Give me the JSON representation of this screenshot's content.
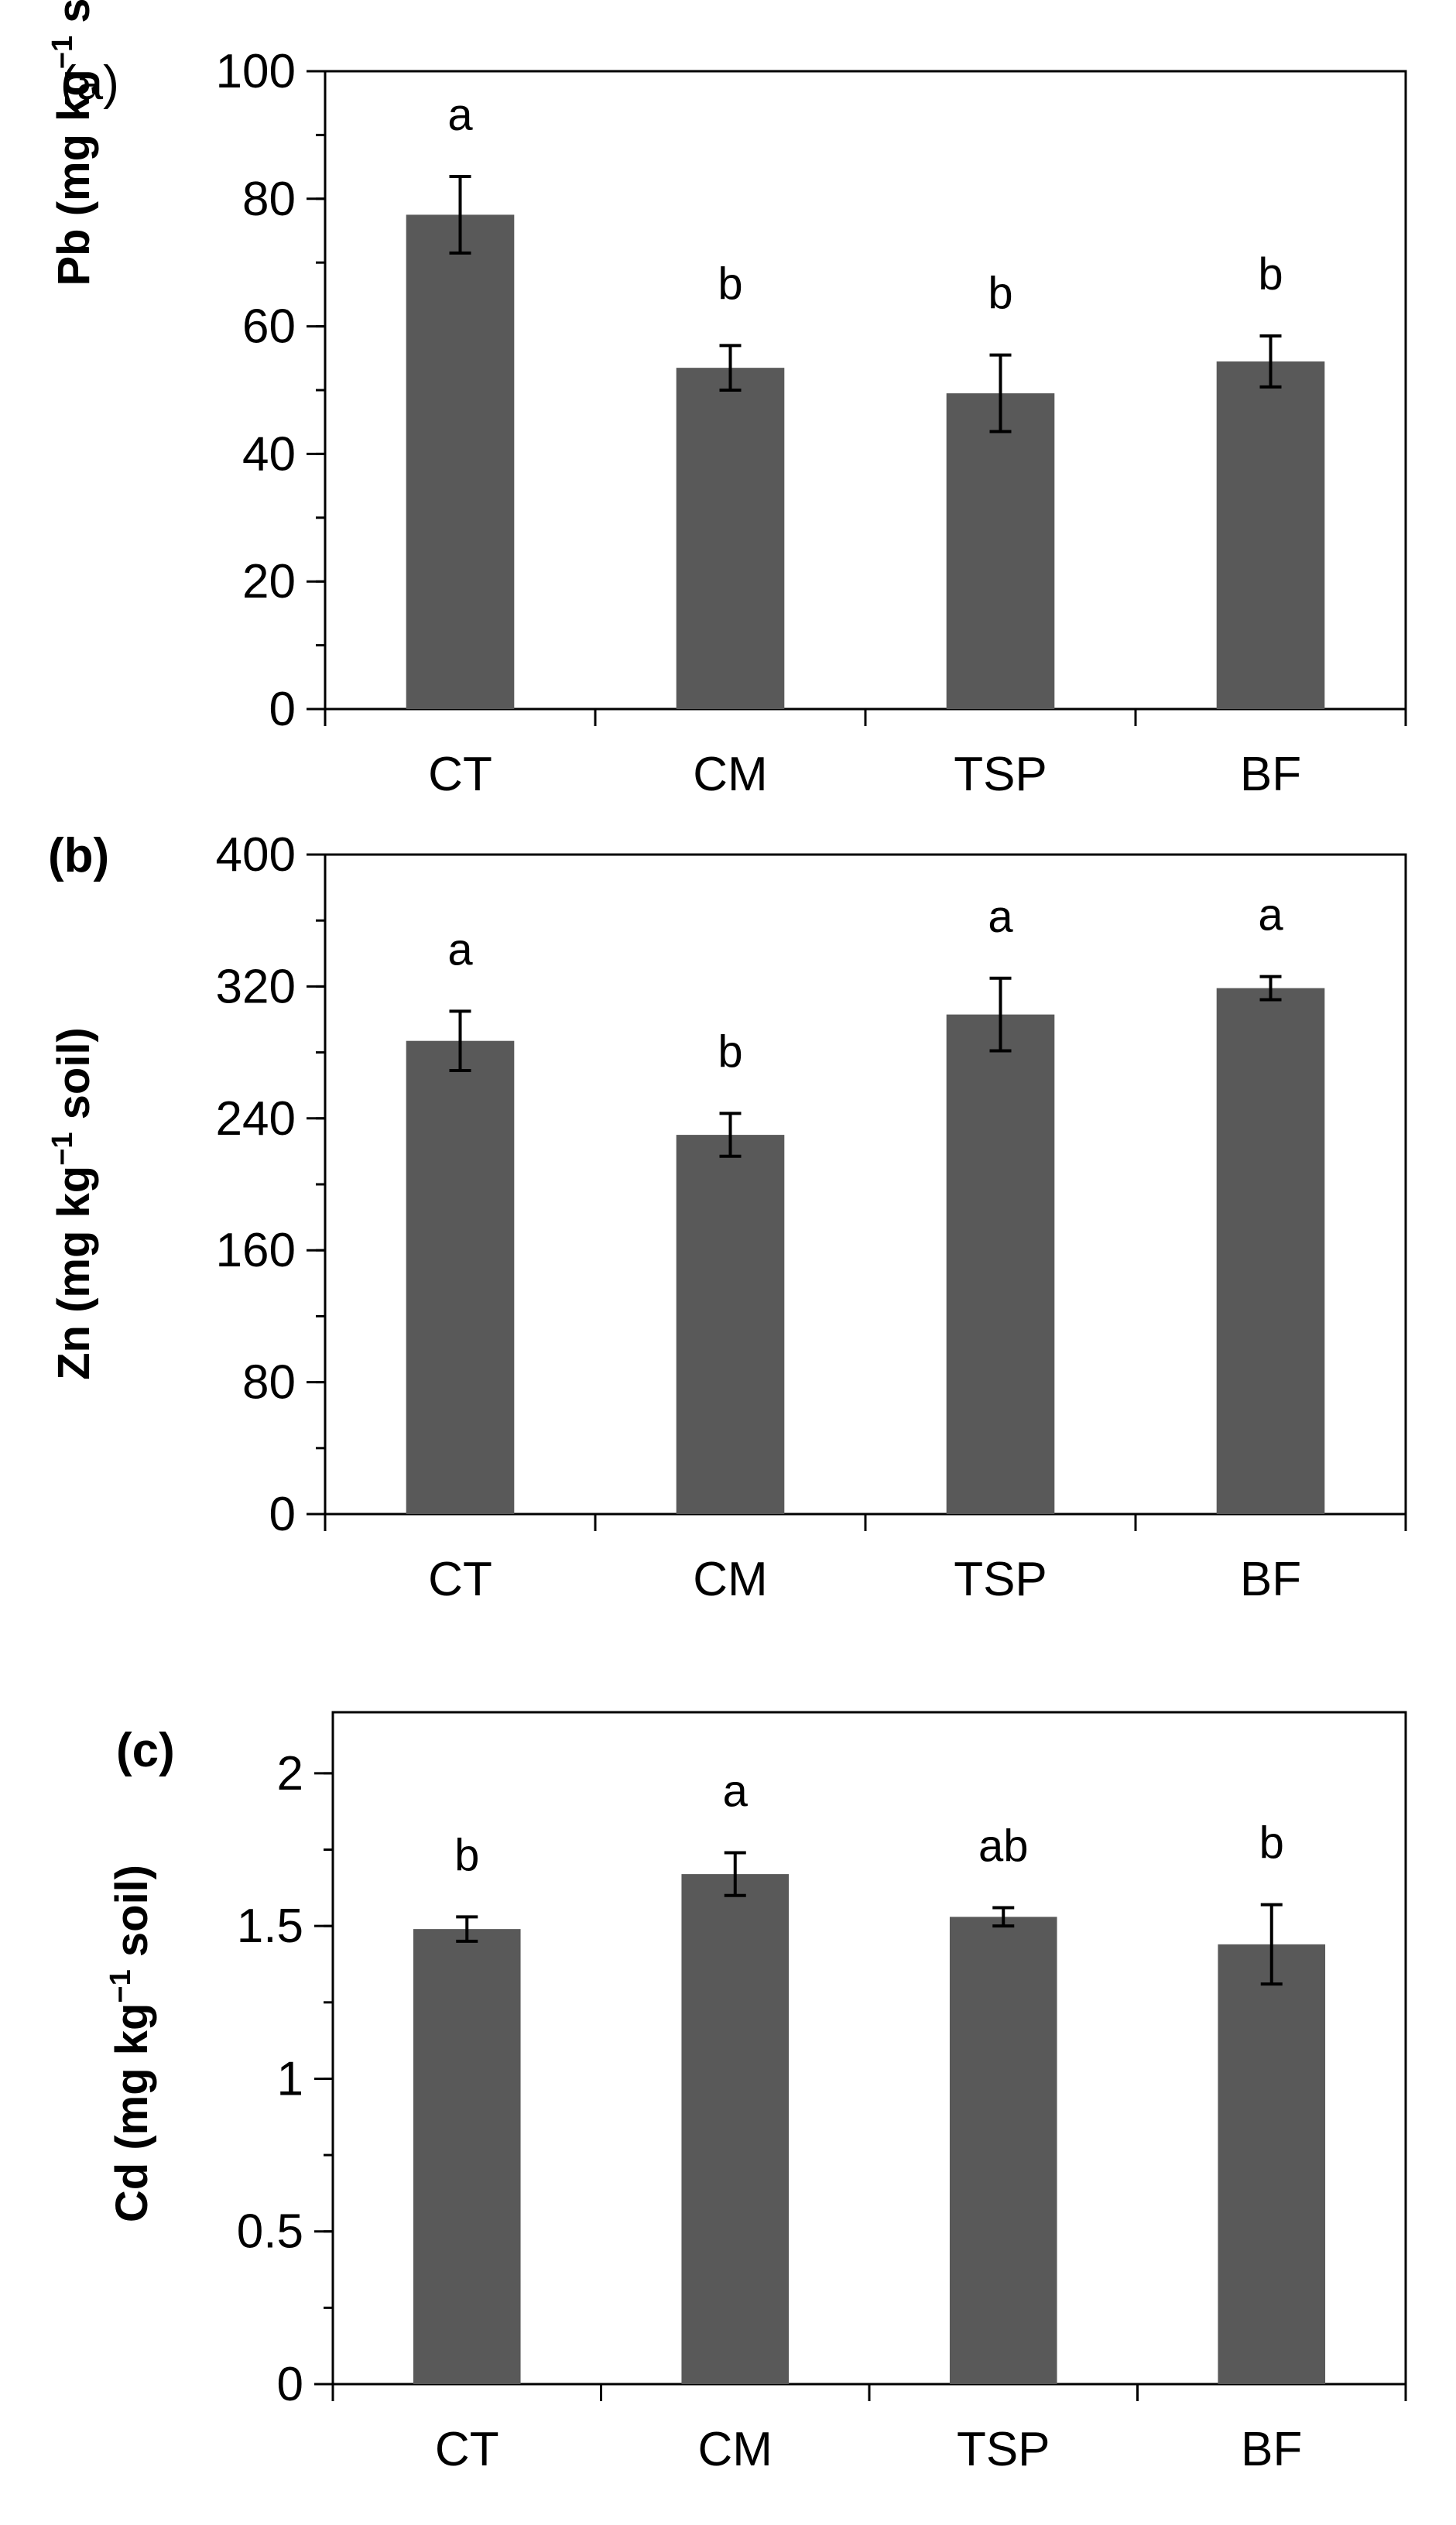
{
  "figure": {
    "bar_color": "#595959",
    "axis_color": "#000000"
  },
  "chart_data": [
    {
      "type": "bar",
      "panel_label": "(a)",
      "categories": [
        "CT",
        "CM",
        "TSP",
        "BF"
      ],
      "values": [
        77.5,
        53.5,
        49.5,
        54.5
      ],
      "errors": [
        6,
        3.5,
        6,
        4
      ],
      "significance": [
        "a",
        "b",
        "b",
        "b"
      ],
      "ylabel": {
        "main": "Pb (mg kg",
        "sup": "−1",
        "tail": " soil)"
      },
      "ylim": [
        0,
        100
      ],
      "yticks": [
        "0",
        "20",
        "40",
        "60",
        "80",
        "100"
      ],
      "ytick_values": [
        0,
        20,
        40,
        60,
        80,
        100
      ],
      "minor_step": 10,
      "grid": false
    },
    {
      "type": "bar",
      "panel_label": "(b)",
      "categories": [
        "CT",
        "CM",
        "TSP",
        "BF"
      ],
      "values": [
        287,
        230,
        303,
        319
      ],
      "errors": [
        18,
        13,
        22,
        7
      ],
      "significance": [
        "a",
        "b",
        "a",
        "a"
      ],
      "ylabel": {
        "main": "Zn (mg kg",
        "sup": "−1",
        "tail": " soil)"
      },
      "ylim": [
        0,
        400
      ],
      "yticks": [
        "0",
        "80",
        "160",
        "240",
        "320",
        "400"
      ],
      "ytick_values": [
        0,
        80,
        160,
        240,
        320,
        400
      ],
      "minor_step": 40,
      "grid": false
    },
    {
      "type": "bar",
      "panel_label": "(c)",
      "categories": [
        "CT",
        "CM",
        "TSP",
        "BF"
      ],
      "values": [
        1.49,
        1.67,
        1.53,
        1.44
      ],
      "errors": [
        0.04,
        0.07,
        0.03,
        0.13
      ],
      "significance": [
        "b",
        "a",
        "ab",
        "b"
      ],
      "ylabel": {
        "main": "Cd (mg kg",
        "sup": "−1",
        "tail": " soil)"
      },
      "ylim": [
        0,
        2.2
      ],
      "yticks": [
        "0",
        "0.5",
        "1",
        "1.5",
        "2"
      ],
      "ytick_values": [
        0,
        0.5,
        1,
        1.5,
        2
      ],
      "minor_step": 0.25,
      "grid": false
    }
  ]
}
